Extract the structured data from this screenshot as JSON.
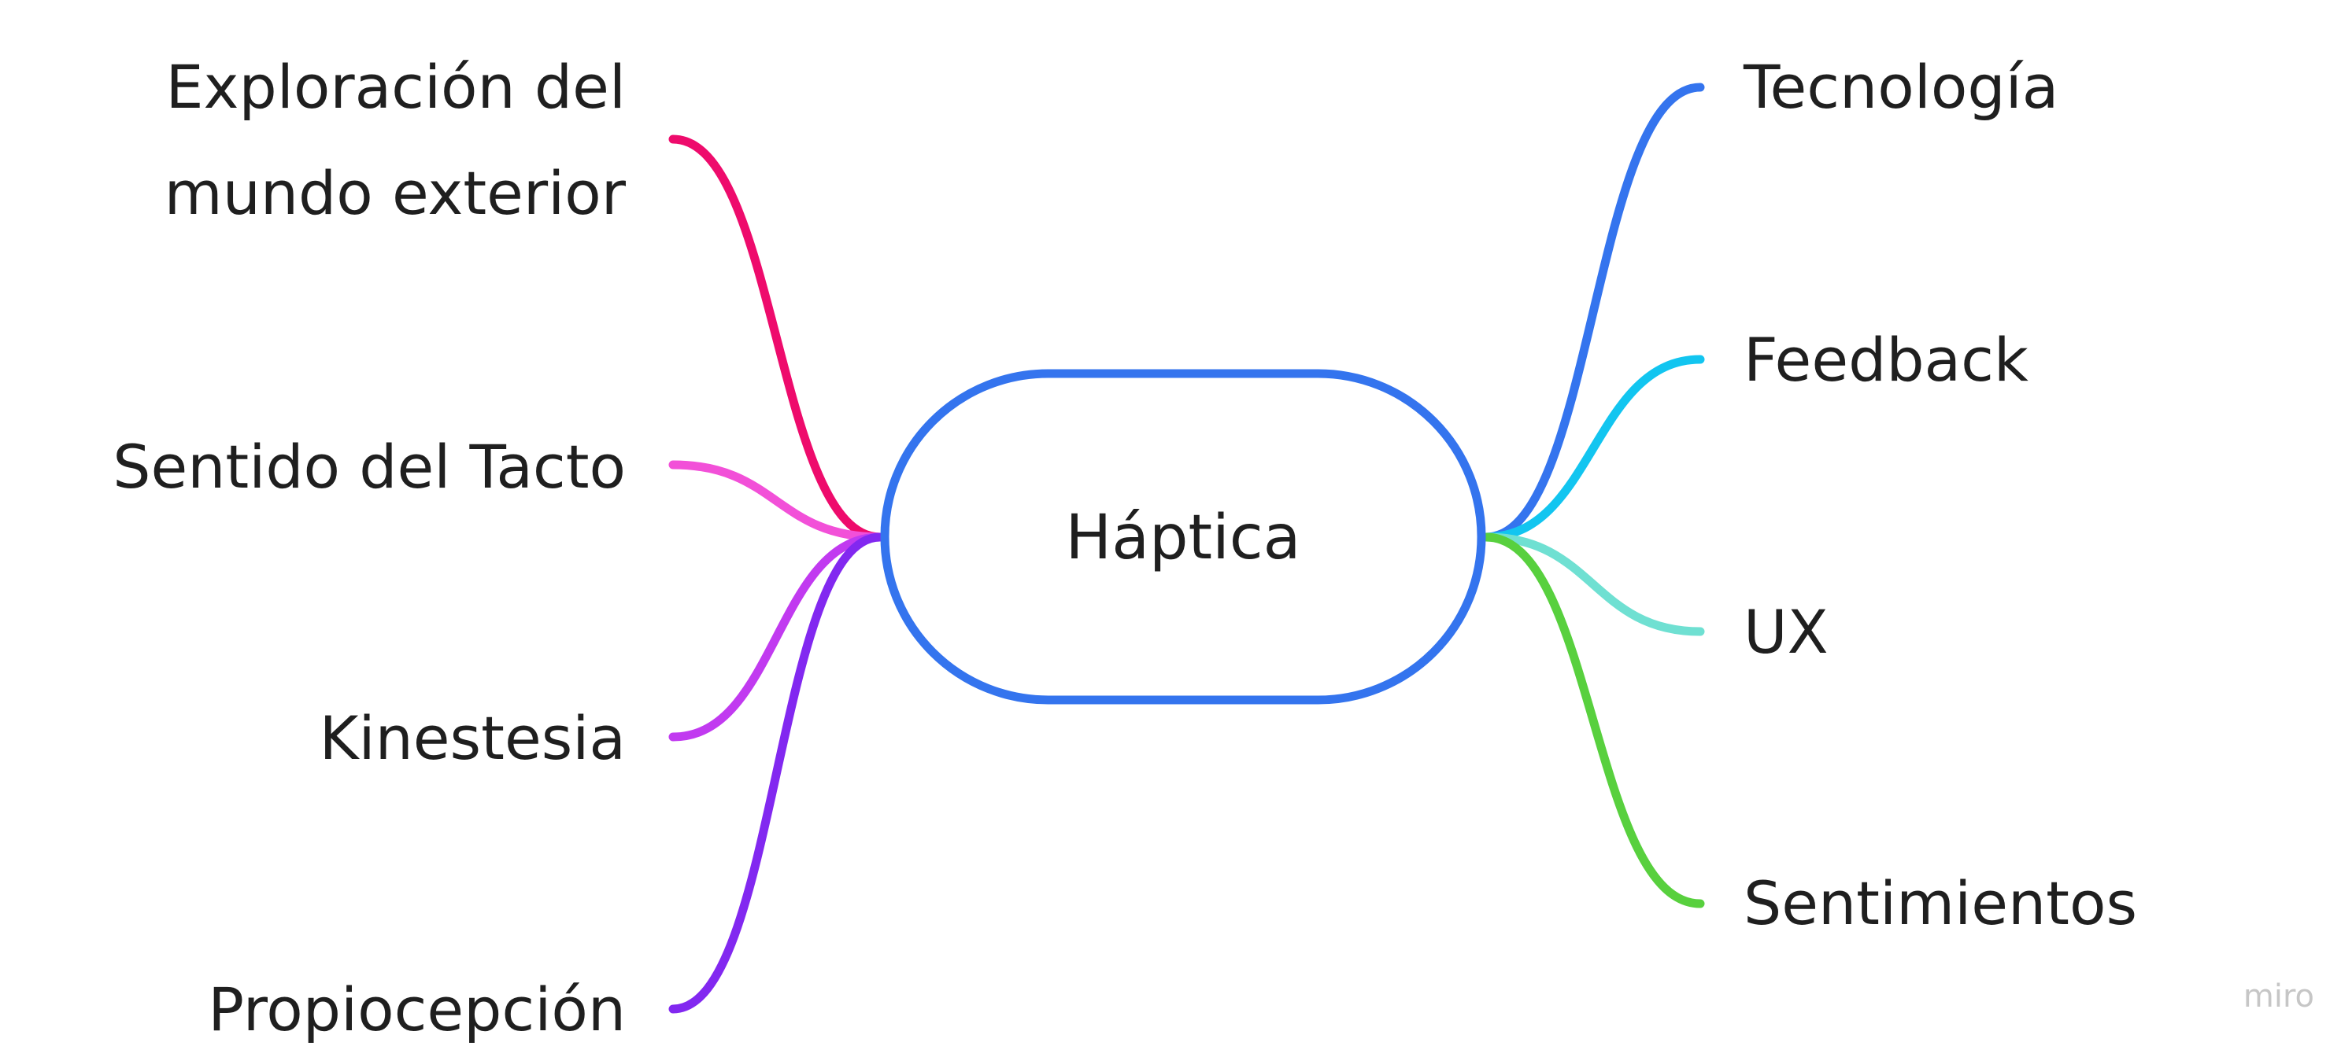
{
  "center": {
    "label": "Háptica",
    "border_color": "#3474ee"
  },
  "left_nodes": [
    {
      "id": "exploracion",
      "lines": [
        "Exploración del",
        "mundo exterior"
      ],
      "color": "#ee0b6c"
    },
    {
      "id": "tacto",
      "lines": [
        "Sentido del Tacto"
      ],
      "color": "#f250d8"
    },
    {
      "id": "kinestesia",
      "lines": [
        "Kinestesia"
      ],
      "color": "#c13af0"
    },
    {
      "id": "propiocepcion",
      "lines": [
        "Propiocepción"
      ],
      "color": "#8228f0"
    }
  ],
  "right_nodes": [
    {
      "id": "tecnologia",
      "lines": [
        "Tecnología"
      ],
      "color": "#3474ee"
    },
    {
      "id": "feedback",
      "lines": [
        "Feedback"
      ],
      "color": "#12c5f0"
    },
    {
      "id": "ux",
      "lines": [
        "UX"
      ],
      "color": "#6fe0d2"
    },
    {
      "id": "sentimientos",
      "lines": [
        "Sentimientos"
      ],
      "color": "#58d03e"
    }
  ],
  "watermark": "miro"
}
